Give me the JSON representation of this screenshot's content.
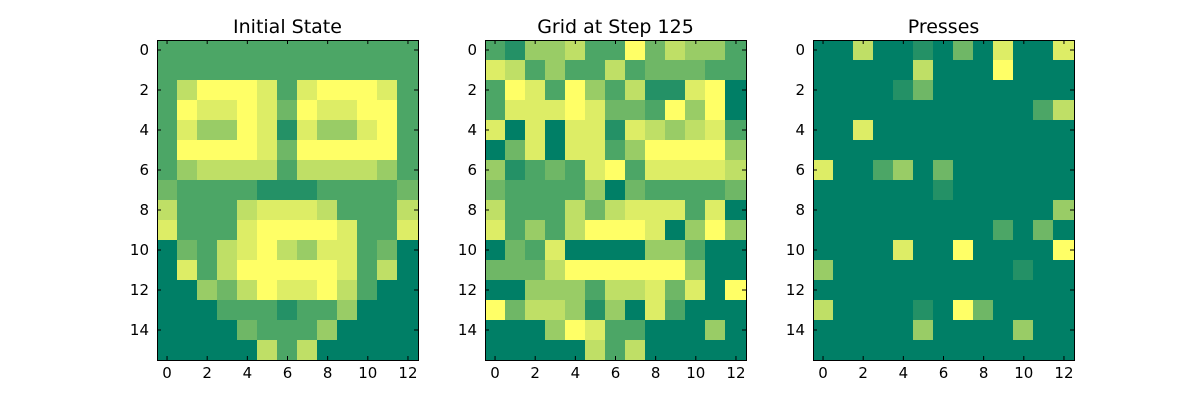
{
  "colors": {
    "level_0": "#007f66",
    "level_1": "#249166",
    "level_2": "#4ca666",
    "level_3": "#6fb766",
    "level_4": "#99cc66",
    "level_5": "#bfdf66",
    "level_6": "#dded66",
    "level_7": "#ffff66"
  },
  "chart_data": [
    {
      "type": "heatmap",
      "title": "Initial State",
      "colormap": "summer",
      "x_ticks": [
        0,
        2,
        4,
        6,
        8,
        10,
        12
      ],
      "y_ticks": [
        0,
        2,
        4,
        6,
        8,
        10,
        12,
        14
      ],
      "xlim": [
        -0.5,
        12.5
      ],
      "ylim": [
        15.5,
        -0.5
      ],
      "grid": false,
      "values": [
        [
          2,
          2,
          2,
          2,
          2,
          2,
          2,
          2,
          2,
          2,
          2,
          2,
          2
        ],
        [
          2,
          2,
          2,
          2,
          2,
          2,
          2,
          2,
          2,
          2,
          2,
          2,
          2
        ],
        [
          2,
          5,
          7,
          7,
          7,
          6,
          2,
          6,
          7,
          7,
          7,
          6,
          2
        ],
        [
          2,
          7,
          6,
          6,
          7,
          6,
          3,
          7,
          6,
          6,
          7,
          7,
          2
        ],
        [
          2,
          6,
          4,
          4,
          7,
          6,
          1,
          6,
          4,
          4,
          6,
          7,
          2
        ],
        [
          2,
          7,
          7,
          7,
          7,
          6,
          3,
          7,
          7,
          7,
          7,
          7,
          2
        ],
        [
          2,
          4,
          5,
          5,
          5,
          5,
          2,
          5,
          5,
          5,
          5,
          4,
          2
        ],
        [
          3,
          2,
          2,
          2,
          2,
          1,
          1,
          1,
          2,
          2,
          2,
          2,
          3
        ],
        [
          5,
          2,
          2,
          2,
          5,
          6,
          6,
          6,
          5,
          2,
          2,
          2,
          5
        ],
        [
          6,
          2,
          2,
          2,
          6,
          7,
          7,
          7,
          7,
          6,
          2,
          2,
          6
        ],
        [
          0,
          3,
          2,
          5,
          6,
          7,
          5,
          4,
          6,
          6,
          2,
          3,
          0
        ],
        [
          0,
          6,
          2,
          5,
          7,
          7,
          7,
          7,
          7,
          6,
          2,
          5,
          0
        ],
        [
          0,
          0,
          4,
          3,
          5,
          7,
          6,
          6,
          7,
          5,
          2,
          0,
          0
        ],
        [
          0,
          0,
          0,
          2,
          2,
          2,
          1,
          2,
          2,
          4,
          0,
          0,
          0
        ],
        [
          0,
          0,
          0,
          0,
          3,
          2,
          2,
          2,
          4,
          0,
          0,
          0,
          0
        ],
        [
          0,
          0,
          0,
          0,
          0,
          5,
          2,
          5,
          0,
          0,
          0,
          0,
          0
        ]
      ]
    },
    {
      "type": "heatmap",
      "title": "Grid at Step 125",
      "colormap": "summer",
      "x_ticks": [
        0,
        2,
        4,
        6,
        8,
        10,
        12
      ],
      "y_ticks": [
        0,
        2,
        4,
        6,
        8,
        10,
        12,
        14
      ],
      "xlim": [
        -0.5,
        12.5
      ],
      "ylim": [
        15.5,
        -0.5
      ],
      "grid": false,
      "values": [
        [
          2,
          1,
          4,
          4,
          5,
          2,
          2,
          7,
          3,
          5,
          4,
          4,
          2
        ],
        [
          6,
          5,
          2,
          4,
          2,
          2,
          5,
          2,
          3,
          3,
          3,
          2,
          2
        ],
        [
          2,
          7,
          6,
          2,
          7,
          4,
          2,
          5,
          1,
          1,
          6,
          7,
          0
        ],
        [
          2,
          6,
          6,
          6,
          7,
          6,
          3,
          3,
          2,
          7,
          4,
          7,
          0
        ],
        [
          6,
          0,
          6,
          0,
          6,
          6,
          1,
          6,
          5,
          4,
          5,
          6,
          2
        ],
        [
          0,
          3,
          6,
          0,
          6,
          6,
          2,
          4,
          7,
          7,
          7,
          7,
          4
        ],
        [
          4,
          1,
          2,
          3,
          2,
          6,
          7,
          2,
          6,
          6,
          6,
          6,
          5
        ],
        [
          3,
          2,
          2,
          2,
          2,
          4,
          0,
          3,
          2,
          2,
          2,
          2,
          3
        ],
        [
          5,
          2,
          2,
          2,
          5,
          3,
          5,
          6,
          6,
          6,
          2,
          6,
          0
        ],
        [
          6,
          2,
          4,
          2,
          5,
          7,
          7,
          7,
          6,
          0,
          4,
          7,
          4
        ],
        [
          0,
          3,
          2,
          6,
          0,
          0,
          0,
          0,
          4,
          4,
          2,
          0,
          0
        ],
        [
          3,
          3,
          3,
          5,
          7,
          7,
          7,
          7,
          7,
          7,
          4,
          0,
          0
        ],
        [
          0,
          0,
          4,
          4,
          4,
          2,
          5,
          5,
          6,
          3,
          6,
          0,
          7
        ],
        [
          7,
          3,
          5,
          5,
          4,
          1,
          4,
          0,
          6,
          2,
          0,
          0,
          0
        ],
        [
          0,
          0,
          0,
          4,
          7,
          6,
          2,
          2,
          0,
          0,
          0,
          4,
          0
        ],
        [
          0,
          0,
          0,
          0,
          0,
          5,
          2,
          5,
          0,
          0,
          0,
          0,
          0
        ]
      ]
    },
    {
      "type": "heatmap",
      "title": "Presses",
      "colormap": "summer",
      "x_ticks": [
        0,
        2,
        4,
        6,
        8,
        10,
        12
      ],
      "y_ticks": [
        0,
        2,
        4,
        6,
        8,
        10,
        12,
        14
      ],
      "xlim": [
        -0.5,
        12.5
      ],
      "ylim": [
        15.5,
        -0.5
      ],
      "grid": false,
      "values": [
        [
          0,
          0,
          5,
          0,
          0,
          1,
          0,
          3,
          0,
          6,
          0,
          0,
          6
        ],
        [
          0,
          0,
          0,
          0,
          0,
          5,
          0,
          0,
          0,
          7,
          0,
          0,
          0
        ],
        [
          0,
          0,
          0,
          0,
          1,
          3,
          0,
          0,
          0,
          0,
          0,
          0,
          0
        ],
        [
          0,
          0,
          0,
          0,
          0,
          0,
          0,
          0,
          0,
          0,
          0,
          2,
          5
        ],
        [
          0,
          0,
          6,
          0,
          0,
          0,
          0,
          0,
          0,
          0,
          0,
          0,
          0
        ],
        [
          0,
          0,
          0,
          0,
          0,
          0,
          0,
          0,
          0,
          0,
          0,
          0,
          0
        ],
        [
          6,
          0,
          0,
          2,
          4,
          0,
          3,
          0,
          0,
          0,
          0,
          0,
          0
        ],
        [
          0,
          0,
          0,
          0,
          0,
          0,
          1,
          0,
          0,
          0,
          0,
          0,
          0
        ],
        [
          0,
          0,
          0,
          0,
          0,
          0,
          0,
          0,
          0,
          0,
          0,
          0,
          4
        ],
        [
          0,
          0,
          0,
          0,
          0,
          0,
          0,
          0,
          0,
          2,
          0,
          3,
          0
        ],
        [
          0,
          0,
          0,
          0,
          6,
          0,
          0,
          7,
          0,
          0,
          0,
          0,
          7
        ],
        [
          4,
          0,
          0,
          0,
          0,
          0,
          0,
          0,
          0,
          0,
          1,
          0,
          0
        ],
        [
          0,
          0,
          0,
          0,
          0,
          0,
          0,
          0,
          0,
          0,
          0,
          0,
          0
        ],
        [
          5,
          0,
          0,
          0,
          0,
          1,
          0,
          7,
          3,
          0,
          0,
          0,
          0
        ],
        [
          0,
          0,
          0,
          0,
          0,
          4,
          0,
          0,
          0,
          0,
          4,
          0,
          0
        ],
        [
          0,
          0,
          0,
          0,
          0,
          0,
          0,
          0,
          0,
          0,
          0,
          0,
          0
        ]
      ]
    }
  ]
}
